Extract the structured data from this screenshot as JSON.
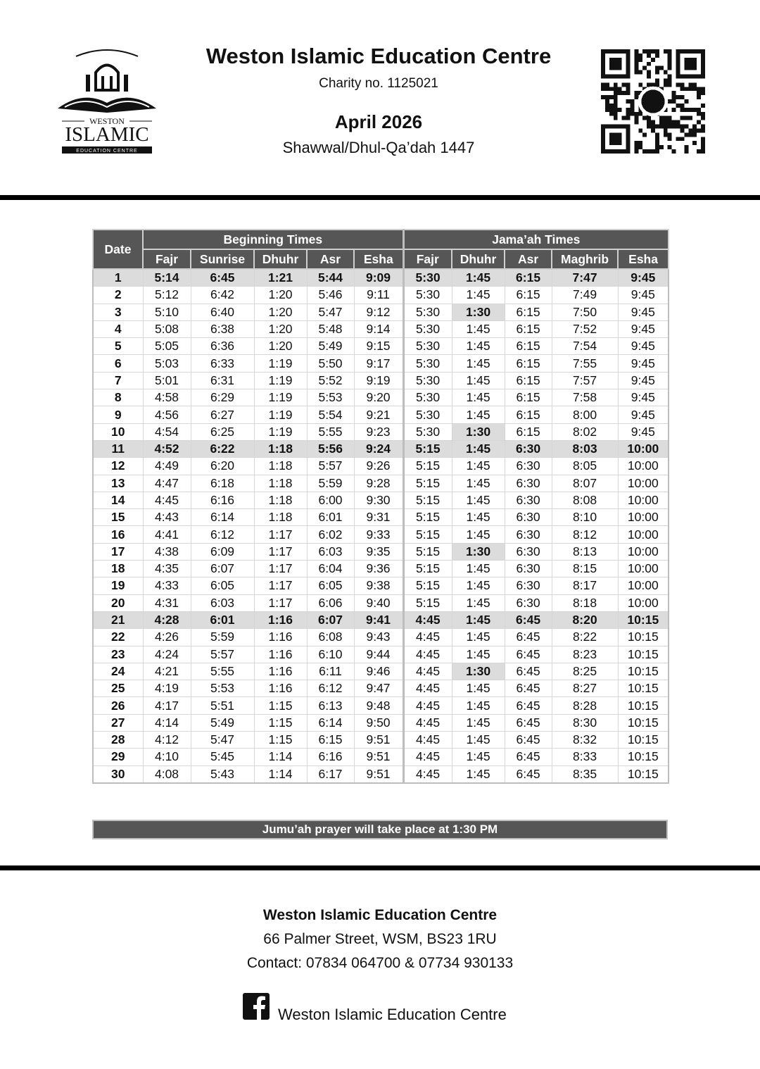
{
  "header": {
    "title": "Weston Islamic Education Centre",
    "charity": "Charity no. 1125021",
    "month": "April 2026",
    "hijri": "Shawwal/Dhul-Qa’dah 1447",
    "logo": {
      "icon": "mosque-book-logo",
      "text_top": "WESTON",
      "text_main": "ISLAMIC",
      "text_bottom": "EDUCATION CENTRE"
    },
    "qr": {
      "icon": "qr-code"
    }
  },
  "table": {
    "date_label": "Date",
    "group_beginning": "Beginning Times",
    "group_jamaah": "Jama’ah Times",
    "columns": [
      "Fajr",
      "Sunrise",
      "Dhuhr",
      "Asr",
      "Esha",
      "Fajr",
      "Dhuhr",
      "Asr",
      "Maghrib",
      "Esha"
    ],
    "highlight_rows": [
      1,
      11,
      21
    ],
    "highlight_jamaah_dhuhr_rows": [
      3,
      10,
      17,
      24
    ],
    "highlight_color": "#dcdcdc",
    "header_color": "#565656",
    "rows": [
      [
        "1",
        "5:14",
        "6:45",
        "1:21",
        "5:44",
        "9:09",
        "5:30",
        "1:45",
        "6:15",
        "7:47",
        "9:45"
      ],
      [
        "2",
        "5:12",
        "6:42",
        "1:20",
        "5:46",
        "9:11",
        "5:30",
        "1:45",
        "6:15",
        "7:49",
        "9:45"
      ],
      [
        "3",
        "5:10",
        "6:40",
        "1:20",
        "5:47",
        "9:12",
        "5:30",
        "1:30",
        "6:15",
        "7:50",
        "9:45"
      ],
      [
        "4",
        "5:08",
        "6:38",
        "1:20",
        "5:48",
        "9:14",
        "5:30",
        "1:45",
        "6:15",
        "7:52",
        "9:45"
      ],
      [
        "5",
        "5:05",
        "6:36",
        "1:20",
        "5:49",
        "9:15",
        "5:30",
        "1:45",
        "6:15",
        "7:54",
        "9:45"
      ],
      [
        "6",
        "5:03",
        "6:33",
        "1:19",
        "5:50",
        "9:17",
        "5:30",
        "1:45",
        "6:15",
        "7:55",
        "9:45"
      ],
      [
        "7",
        "5:01",
        "6:31",
        "1:19",
        "5:52",
        "9:19",
        "5:30",
        "1:45",
        "6:15",
        "7:57",
        "9:45"
      ],
      [
        "8",
        "4:58",
        "6:29",
        "1:19",
        "5:53",
        "9:20",
        "5:30",
        "1:45",
        "6:15",
        "7:58",
        "9:45"
      ],
      [
        "9",
        "4:56",
        "6:27",
        "1:19",
        "5:54",
        "9:21",
        "5:30",
        "1:45",
        "6:15",
        "8:00",
        "9:45"
      ],
      [
        "10",
        "4:54",
        "6:25",
        "1:19",
        "5:55",
        "9:23",
        "5:30",
        "1:30",
        "6:15",
        "8:02",
        "9:45"
      ],
      [
        "11",
        "4:52",
        "6:22",
        "1:18",
        "5:56",
        "9:24",
        "5:15",
        "1:45",
        "6:30",
        "8:03",
        "10:00"
      ],
      [
        "12",
        "4:49",
        "6:20",
        "1:18",
        "5:57",
        "9:26",
        "5:15",
        "1:45",
        "6:30",
        "8:05",
        "10:00"
      ],
      [
        "13",
        "4:47",
        "6:18",
        "1:18",
        "5:59",
        "9:28",
        "5:15",
        "1:45",
        "6:30",
        "8:07",
        "10:00"
      ],
      [
        "14",
        "4:45",
        "6:16",
        "1:18",
        "6:00",
        "9:30",
        "5:15",
        "1:45",
        "6:30",
        "8:08",
        "10:00"
      ],
      [
        "15",
        "4:43",
        "6:14",
        "1:18",
        "6:01",
        "9:31",
        "5:15",
        "1:45",
        "6:30",
        "8:10",
        "10:00"
      ],
      [
        "16",
        "4:41",
        "6:12",
        "1:17",
        "6:02",
        "9:33",
        "5:15",
        "1:45",
        "6:30",
        "8:12",
        "10:00"
      ],
      [
        "17",
        "4:38",
        "6:09",
        "1:17",
        "6:03",
        "9:35",
        "5:15",
        "1:30",
        "6:30",
        "8:13",
        "10:00"
      ],
      [
        "18",
        "4:35",
        "6:07",
        "1:17",
        "6:04",
        "9:36",
        "5:15",
        "1:45",
        "6:30",
        "8:15",
        "10:00"
      ],
      [
        "19",
        "4:33",
        "6:05",
        "1:17",
        "6:05",
        "9:38",
        "5:15",
        "1:45",
        "6:30",
        "8:17",
        "10:00"
      ],
      [
        "20",
        "4:31",
        "6:03",
        "1:17",
        "6:06",
        "9:40",
        "5:15",
        "1:45",
        "6:30",
        "8:18",
        "10:00"
      ],
      [
        "21",
        "4:28",
        "6:01",
        "1:16",
        "6:07",
        "9:41",
        "4:45",
        "1:45",
        "6:45",
        "8:20",
        "10:15"
      ],
      [
        "22",
        "4:26",
        "5:59",
        "1:16",
        "6:08",
        "9:43",
        "4:45",
        "1:45",
        "6:45",
        "8:22",
        "10:15"
      ],
      [
        "23",
        "4:24",
        "5:57",
        "1:16",
        "6:10",
        "9:44",
        "4:45",
        "1:45",
        "6:45",
        "8:23",
        "10:15"
      ],
      [
        "24",
        "4:21",
        "5:55",
        "1:16",
        "6:11",
        "9:46",
        "4:45",
        "1:30",
        "6:45",
        "8:25",
        "10:15"
      ],
      [
        "25",
        "4:19",
        "5:53",
        "1:16",
        "6:12",
        "9:47",
        "4:45",
        "1:45",
        "6:45",
        "8:27",
        "10:15"
      ],
      [
        "26",
        "4:17",
        "5:51",
        "1:15",
        "6:13",
        "9:48",
        "4:45",
        "1:45",
        "6:45",
        "8:28",
        "10:15"
      ],
      [
        "27",
        "4:14",
        "5:49",
        "1:15",
        "6:14",
        "9:50",
        "4:45",
        "1:45",
        "6:45",
        "8:30",
        "10:15"
      ],
      [
        "28",
        "4:12",
        "5:47",
        "1:15",
        "6:15",
        "9:51",
        "4:45",
        "1:45",
        "6:45",
        "8:32",
        "10:15"
      ],
      [
        "29",
        "4:10",
        "5:45",
        "1:14",
        "6:16",
        "9:51",
        "4:45",
        "1:45",
        "6:45",
        "8:33",
        "10:15"
      ],
      [
        "30",
        "4:08",
        "5:43",
        "1:14",
        "6:17",
        "9:51",
        "4:45",
        "1:45",
        "6:45",
        "8:35",
        "10:15"
      ]
    ]
  },
  "jumuah_note": "Jumu’ah prayer will take place at 1:30 PM",
  "footer": {
    "name": "Weston Islamic Education Centre",
    "address": "66 Palmer Street, WSM, BS23 1RU",
    "contact": "Contact: 07834 064700 & 07734 930133",
    "facebook_icon": "facebook-icon",
    "facebook_text": "Weston Islamic Education Centre"
  }
}
